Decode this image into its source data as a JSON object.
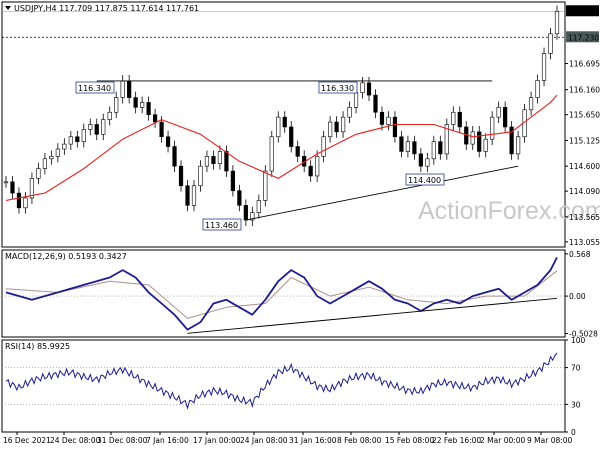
{
  "chart_data": {
    "type": "candlestick",
    "panels": {
      "price": {
        "title": "USDJPY,H4  117.709 117.875 117.614 117.761",
        "symbol": "USDJPY",
        "timeframe": "H4",
        "ohlc_current": {
          "open": 117.709,
          "high": 117.875,
          "low": 117.614,
          "close": 117.761
        },
        "current_price_label": "117.761",
        "marked_level_label": "117.230",
        "y_ticks": [
          "116.695",
          "116.160",
          "115.650",
          "115.125",
          "114.600",
          "114.090",
          "113.565",
          "113.055"
        ],
        "ylim": [
          112.95,
          117.95
        ],
        "series": [
          {
            "name": "Price",
            "color": "#000000",
            "points": [
              [
                "t0",
                114.28
              ],
              [
                "t1",
                114.05
              ],
              [
                "t2",
                113.75
              ],
              [
                "t3",
                113.95
              ],
              [
                "t4",
                114.35
              ],
              [
                "t5",
                114.55
              ],
              [
                "t6",
                114.75
              ],
              [
                "t7",
                114.8
              ],
              [
                "t8",
                114.95
              ],
              [
                "t9",
                115.05
              ],
              [
                "t10",
                115.2
              ],
              [
                "t11",
                115.1
              ],
              [
                "t12",
                115.35
              ],
              [
                "t13",
                115.45
              ],
              [
                "t14",
                115.25
              ],
              [
                "t15",
                115.55
              ],
              [
                "t16",
                115.7
              ],
              [
                "t17",
                116.0
              ],
              [
                "t18",
                116.34
              ],
              [
                "t19",
                116.0
              ],
              [
                "t20",
                115.8
              ],
              [
                "t21",
                115.9
              ],
              [
                "t22",
                115.65
              ],
              [
                "t23",
                115.5
              ],
              [
                "t24",
                115.2
              ],
              [
                "t25",
                115.0
              ],
              [
                "t26",
                114.6
              ],
              [
                "t27",
                114.2
              ],
              [
                "t28",
                113.8
              ],
              [
                "t29",
                114.2
              ],
              [
                "t30",
                114.6
              ],
              [
                "t31",
                114.8
              ],
              [
                "t32",
                114.65
              ],
              [
                "t33",
                114.9
              ],
              [
                "t34",
                114.5
              ],
              [
                "t35",
                114.1
              ],
              [
                "t36",
                113.8
              ],
              [
                "t37",
                113.5
              ],
              [
                "t38",
                113.65
              ],
              [
                "t39",
                113.9
              ],
              [
                "t40",
                114.5
              ],
              [
                "t41",
                115.2
              ],
              [
                "t42",
                115.6
              ],
              [
                "t43",
                115.4
              ],
              [
                "t44",
                115.0
              ],
              [
                "t45",
                114.8
              ],
              [
                "t46",
                114.6
              ],
              [
                "t47",
                114.4
              ],
              [
                "t48",
                114.8
              ],
              [
                "t49",
                115.2
              ],
              [
                "t50",
                115.5
              ],
              [
                "t51",
                115.3
              ],
              [
                "t52",
                115.6
              ],
              [
                "t53",
                115.8
              ],
              [
                "t54",
                116.1
              ],
              [
                "t55",
                116.3
              ],
              [
                "t56",
                116.05
              ],
              [
                "t57",
                115.7
              ],
              [
                "t58",
                115.45
              ],
              [
                "t59",
                115.6
              ],
              [
                "t60",
                115.2
              ],
              [
                "t61",
                114.9
              ],
              [
                "t62",
                115.1
              ],
              [
                "t63",
                114.85
              ],
              [
                "t64",
                114.6
              ],
              [
                "t65",
                114.75
              ],
              [
                "t66",
                115.1
              ],
              [
                "t67",
                114.85
              ],
              [
                "t68",
                115.45
              ],
              [
                "t69",
                115.7
              ],
              [
                "t70",
                115.4
              ],
              [
                "t71",
                115.05
              ],
              [
                "t72",
                115.3
              ],
              [
                "t73",
                114.9
              ],
              [
                "t74",
                115.15
              ],
              [
                "t75",
                115.6
              ],
              [
                "t76",
                115.8
              ],
              [
                "t77",
                115.4
              ],
              [
                "t78",
                114.85
              ],
              [
                "t79",
                115.2
              ],
              [
                "t80",
                115.75
              ],
              [
                "t81",
                116.0
              ],
              [
                "t82",
                116.35
              ],
              [
                "t83",
                116.9
              ],
              [
                "t84",
                117.3
              ],
              [
                "t85",
                117.761
              ]
            ]
          },
          {
            "name": "SMA",
            "color": "#e8231f",
            "points": [
              [
                "t0",
                113.9
              ],
              [
                "t6",
                114.05
              ],
              [
                "t12",
                114.55
              ],
              [
                "t18",
                115.15
              ],
              [
                "t24",
                115.55
              ],
              [
                "t30",
                115.25
              ],
              [
                "t36",
                114.7
              ],
              [
                "t42",
                114.35
              ],
              [
                "t48",
                114.85
              ],
              [
                "t54",
                115.25
              ],
              [
                "t60",
                115.45
              ],
              [
                "t66",
                115.45
              ],
              [
                "t72",
                115.2
              ],
              [
                "t78",
                115.3
              ],
              [
                "t84",
                115.9
              ],
              [
                "t85",
                116.05
              ]
            ]
          }
        ],
        "annotations": [
          {
            "text": "116.340"
          },
          {
            "text": "116.330"
          },
          {
            "text": "114.400"
          },
          {
            "text": "113.460"
          }
        ],
        "watermark": "ActionForex.com"
      },
      "macd": {
        "title": "MACD(12,26,9) 0.5193 0.3427",
        "y_ticks": [
          "0.568",
          "0.00",
          "-0.5028"
        ],
        "ylim": [
          -0.55,
          0.62
        ],
        "series": [
          {
            "name": "MACD",
            "color": "#1c1c8e",
            "points": [
              [
                "t0",
                0.05
              ],
              [
                "t4",
                -0.05
              ],
              [
                "t8",
                0.05
              ],
              [
                "t12",
                0.15
              ],
              [
                "t16",
                0.25
              ],
              [
                "t18",
                0.35
              ],
              [
                "t20",
                0.25
              ],
              [
                "t22",
                0.05
              ],
              [
                "t24",
                -0.1
              ],
              [
                "t26",
                -0.25
              ],
              [
                "t28",
                -0.45
              ],
              [
                "t30",
                -0.35
              ],
              [
                "t32",
                -0.1
              ],
              [
                "t34",
                -0.05
              ],
              [
                "t36",
                -0.15
              ],
              [
                "t38",
                -0.25
              ],
              [
                "t40",
                -0.05
              ],
              [
                "t42",
                0.2
              ],
              [
                "t44",
                0.35
              ],
              [
                "t46",
                0.25
              ],
              [
                "t48",
                0.0
              ],
              [
                "t50",
                -0.1
              ],
              [
                "t52",
                0.0
              ],
              [
                "t54",
                0.1
              ],
              [
                "t56",
                0.2
              ],
              [
                "t58",
                0.1
              ],
              [
                "t60",
                -0.05
              ],
              [
                "t62",
                -0.1
              ],
              [
                "t64",
                -0.2
              ],
              [
                "t66",
                -0.1
              ],
              [
                "t68",
                -0.05
              ],
              [
                "t70",
                -0.1
              ],
              [
                "t72",
                0.0
              ],
              [
                "t74",
                0.05
              ],
              [
                "t76",
                0.1
              ],
              [
                "t78",
                -0.05
              ],
              [
                "t80",
                0.05
              ],
              [
                "t82",
                0.15
              ],
              [
                "t84",
                0.35
              ],
              [
                "t85",
                0.52
              ]
            ]
          },
          {
            "name": "Signal",
            "color": "#b08f8f",
            "points": [
              [
                "t0",
                0.1
              ],
              [
                "t8",
                0.05
              ],
              [
                "t16",
                0.2
              ],
              [
                "t22",
                0.15
              ],
              [
                "t28",
                -0.3
              ],
              [
                "t34",
                -0.15
              ],
              [
                "t40",
                -0.1
              ],
              [
                "t44",
                0.25
              ],
              [
                "t50",
                0.0
              ],
              [
                "t56",
                0.12
              ],
              [
                "t62",
                -0.05
              ],
              [
                "t68",
                -0.1
              ],
              [
                "t74",
                0.0
              ],
              [
                "t80",
                0.0
              ],
              [
                "t85",
                0.34
              ]
            ]
          }
        ]
      },
      "rsi": {
        "title": "RSI(14) 85.9925",
        "y_ticks": [
          "100",
          "70",
          "30",
          "0"
        ],
        "ylim": [
          0,
          100
        ],
        "series": [
          {
            "name": "RSI",
            "color": "#1c1c8e",
            "points": [
              [
                "t0",
                55
              ],
              [
                "t2",
                48
              ],
              [
                "t4",
                56
              ],
              [
                "t6",
                60
              ],
              [
                "t8",
                63
              ],
              [
                "t10",
                65
              ],
              [
                "t12",
                60
              ],
              [
                "t14",
                57
              ],
              [
                "t16",
                64
              ],
              [
                "t18",
                68
              ],
              [
                "t20",
                60
              ],
              [
                "t22",
                52
              ],
              [
                "t24",
                45
              ],
              [
                "t26",
                38
              ],
              [
                "t28",
                30
              ],
              [
                "t30",
                40
              ],
              [
                "t32",
                45
              ],
              [
                "t34",
                42
              ],
              [
                "t36",
                35
              ],
              [
                "t38",
                32
              ],
              [
                "t40",
                50
              ],
              [
                "t42",
                65
              ],
              [
                "t44",
                70
              ],
              [
                "t46",
                60
              ],
              [
                "t48",
                50
              ],
              [
                "t50",
                46
              ],
              [
                "t52",
                55
              ],
              [
                "t54",
                60
              ],
              [
                "t56",
                62
              ],
              [
                "t58",
                55
              ],
              [
                "t60",
                50
              ],
              [
                "t62",
                45
              ],
              [
                "t64",
                44
              ],
              [
                "t66",
                52
              ],
              [
                "t68",
                54
              ],
              [
                "t70",
                50
              ],
              [
                "t72",
                48
              ],
              [
                "t74",
                55
              ],
              [
                "t76",
                58
              ],
              [
                "t78",
                52
              ],
              [
                "t80",
                58
              ],
              [
                "t82",
                66
              ],
              [
                "t84",
                78
              ],
              [
                "t85",
                86
              ]
            ]
          }
        ]
      }
    },
    "x_labels": [
      "16 Dec 2021",
      "24 Dec 08:00",
      "31 Dec 08:00",
      "7 Jan 16:00",
      "17 Jan 00:00",
      "24 Jan 08:00",
      "31 Jan 16:00",
      "8 Feb 08:00",
      "15 Feb 08:00",
      "22 Feb 16:00",
      "2 Mar 00:00",
      "9 Mar 08:00"
    ]
  }
}
